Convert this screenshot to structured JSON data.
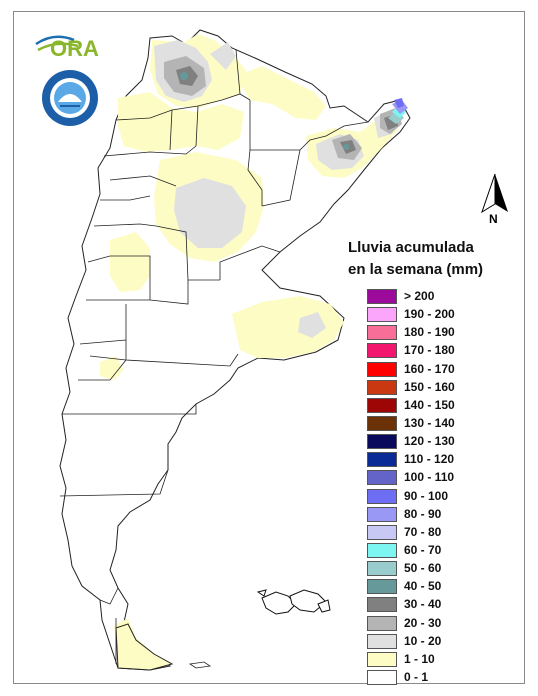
{
  "logos": {
    "ora_text": "ORA",
    "smn_ring_text": "SERVICIO METEOROLOGICO NACIONAL",
    "smn_bottom_text": "ARGENTINA"
  },
  "north_arrow": {
    "label": "N"
  },
  "legend": {
    "title_line1": "Lluvia acumulada",
    "title_line2": "en la semana (mm)",
    "items": [
      {
        "label": "> 200",
        "color": "#9b0a9b"
      },
      {
        "label": "190 - 200",
        "color": "#fba5fb"
      },
      {
        "label": "180 - 190",
        "color": "#f76f99"
      },
      {
        "label": "170 - 180",
        "color": "#f2166e"
      },
      {
        "label": "160 - 170",
        "color": "#ff0000"
      },
      {
        "label": "150 - 160",
        "color": "#c93810"
      },
      {
        "label": "140 - 150",
        "color": "#9e0505"
      },
      {
        "label": "130 - 140",
        "color": "#6b3208"
      },
      {
        "label": "120 - 130",
        "color": "#0a0a5c"
      },
      {
        "label": "110 - 120",
        "color": "#0a2a96"
      },
      {
        "label": "100 - 110",
        "color": "#6464c8"
      },
      {
        "label": "90 - 100",
        "color": "#6e6ef5"
      },
      {
        "label": "80 - 90",
        "color": "#9999f5"
      },
      {
        "label": "70 - 80",
        "color": "#c8c8f5"
      },
      {
        "label": "60 - 70",
        "color": "#7df5f0"
      },
      {
        "label": "50 - 60",
        "color": "#99cccc"
      },
      {
        "label": "40 - 50",
        "color": "#669999"
      },
      {
        "label": "30 - 40",
        "color": "#808080"
      },
      {
        "label": "20 - 30",
        "color": "#b4b4b4"
      },
      {
        "label": "10 - 20",
        "color": "#e0e0e0"
      },
      {
        "label": "1 - 10",
        "color": "#fdfcc4"
      },
      {
        "label": "0 - 1",
        "color": "#ffffff"
      }
    ]
  }
}
